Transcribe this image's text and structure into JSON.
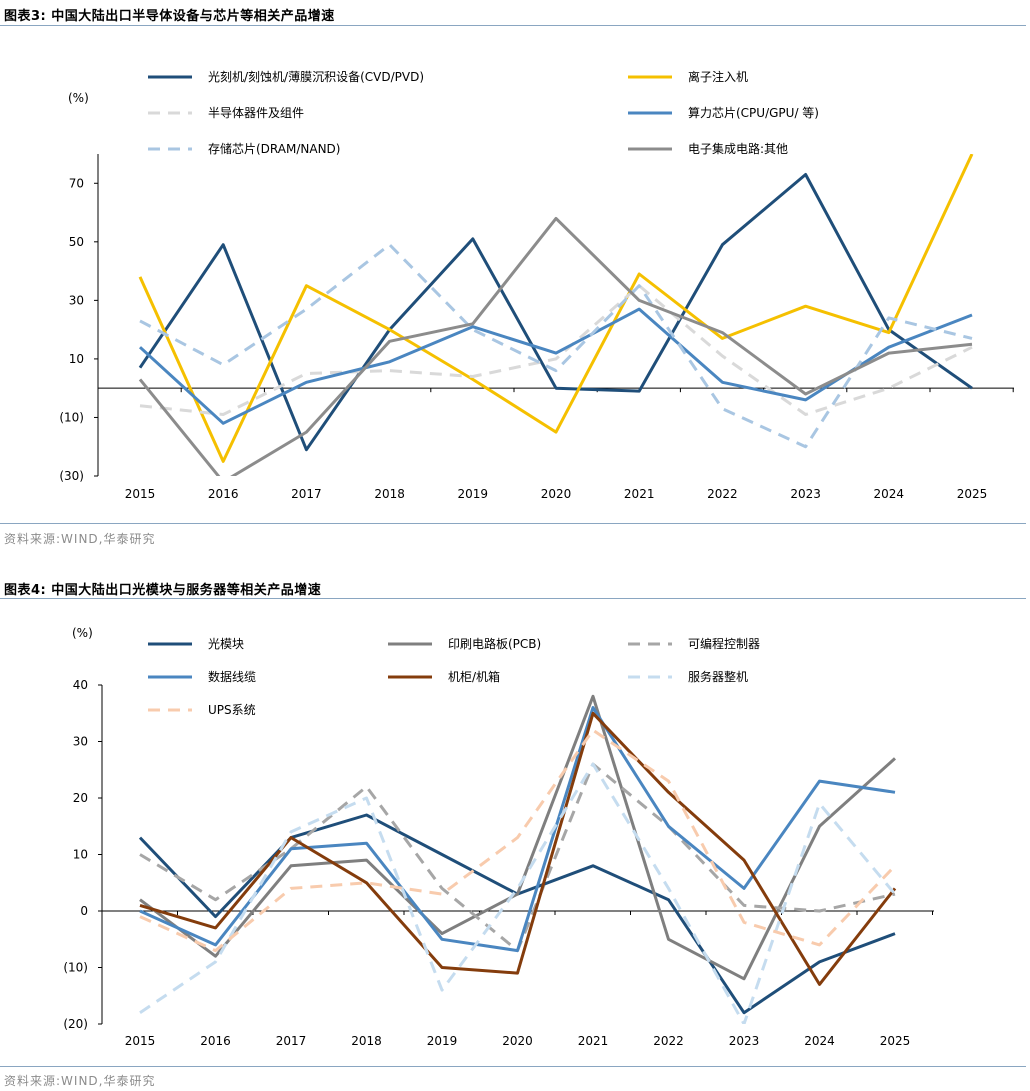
{
  "figure1": {
    "title": "图表3:  中国大陆出口半导体设备与芯片等相关产品增速",
    "source": "资料来源:WIND,华泰研究",
    "chart_data": {
      "type": "line",
      "title": "图表3:  中国大陆出口半导体设备与芯片等相关产品增速",
      "ylabel": "(%)",
      "xlabel": "",
      "ylim": [
        -30,
        80
      ],
      "yticks": [
        70,
        50,
        30,
        10,
        -10,
        -30
      ],
      "ytick_labels": [
        "70",
        "50",
        "30",
        "10",
        "(10)",
        "(30)"
      ],
      "categories": [
        "2015",
        "2016",
        "2017",
        "2018",
        "2019",
        "2020",
        "2021",
        "2022",
        "2023",
        "2024",
        "2025"
      ],
      "legend_position": "top",
      "series": [
        {
          "name": "光刻机/刻蚀机/薄膜沉积设备(CVD/PVD)",
          "color": "#1f4e79",
          "dash": "",
          "values": [
            7,
            49,
            -21,
            20,
            51,
            0,
            -1,
            49,
            73,
            20,
            0
          ]
        },
        {
          "name": "离子注入机",
          "color": "#f5c000",
          "dash": "",
          "values": [
            38,
            -25,
            35,
            20,
            3,
            -15,
            39,
            17,
            28,
            19,
            80
          ]
        },
        {
          "name": "半导体器件及组件",
          "color": "#d9d9d9",
          "dash": "12,8",
          "values": [
            -6,
            -9,
            5,
            6,
            4,
            10,
            35,
            11,
            -9,
            0,
            14
          ]
        },
        {
          "name": "算力芯片(CPU/GPU/ 等)",
          "color": "#4a86c0",
          "dash": "",
          "values": [
            14,
            -12,
            2,
            9,
            21,
            12,
            27,
            2,
            -4,
            14,
            25
          ]
        },
        {
          "name": "存储芯片(DRAM/NAND)",
          "color": "#a9c6e2",
          "dash": "12,8",
          "values": [
            23,
            8,
            27,
            49,
            20,
            6,
            35,
            -7,
            -20,
            24,
            17
          ]
        },
        {
          "name": "电子集成电路:其他",
          "color": "#8c8c8c",
          "dash": "",
          "values": [
            3,
            -32,
            -15,
            16,
            22,
            58,
            30,
            19,
            -2,
            12,
            15
          ]
        }
      ]
    }
  },
  "figure2": {
    "title": "图表4:  中国大陆出口光模块与服务器等相关产品增速",
    "source": "资料来源:WIND,华泰研究",
    "chart_data": {
      "type": "line",
      "title": "图表4:  中国大陆出口光模块与服务器等相关产品增速",
      "ylabel": "(%)",
      "xlabel": "",
      "ylim": [
        -20,
        40
      ],
      "yticks": [
        40,
        30,
        20,
        10,
        0,
        -10,
        -20
      ],
      "ytick_labels": [
        "40",
        "30",
        "20",
        "10",
        "0",
        "(10)",
        "(20)"
      ],
      "categories": [
        "2015",
        "2016",
        "2017",
        "2018",
        "2019",
        "2020",
        "2021",
        "2022",
        "2023",
        "2024",
        "2025"
      ],
      "legend_position": "top",
      "series": [
        {
          "name": "光模块",
          "color": "#1f4e79",
          "dash": "",
          "values": [
            13,
            -1,
            13,
            17,
            10,
            3,
            8,
            2,
            -18,
            -9,
            -4
          ]
        },
        {
          "name": "印刷电路板(PCB)",
          "color": "#7f7f7f",
          "dash": "",
          "values": [
            2,
            -8,
            8,
            9,
            -4,
            3,
            38,
            -5,
            -12,
            15,
            27
          ]
        },
        {
          "name": "可编程控制器",
          "color": "#a6a6a6",
          "dash": "12,8",
          "values": [
            10,
            2,
            11,
            22,
            4,
            -7,
            26,
            15,
            1,
            0,
            3
          ]
        },
        {
          "name": "数据线缆",
          "color": "#4a86c0",
          "dash": "",
          "values": [
            0,
            -6,
            11,
            12,
            -5,
            -7,
            36,
            15,
            4,
            23,
            21
          ]
        },
        {
          "name": "机柜/机箱",
          "color": "#843c0c",
          "dash": "",
          "values": [
            1,
            -3,
            13,
            5,
            -10,
            -11,
            35,
            21,
            9,
            -13,
            4
          ]
        },
        {
          "name": "服务器整机",
          "color": "#c5dcef",
          "dash": "12,8",
          "values": [
            -18,
            -9,
            14,
            20,
            -14,
            4,
            26,
            4,
            -20,
            19,
            3
          ]
        },
        {
          "name": "UPS系统",
          "color": "#f8cbad",
          "dash": "12,8",
          "values": [
            -1,
            -7,
            4,
            5,
            3,
            13,
            32,
            23,
            -2,
            -6,
            8
          ]
        }
      ]
    }
  }
}
